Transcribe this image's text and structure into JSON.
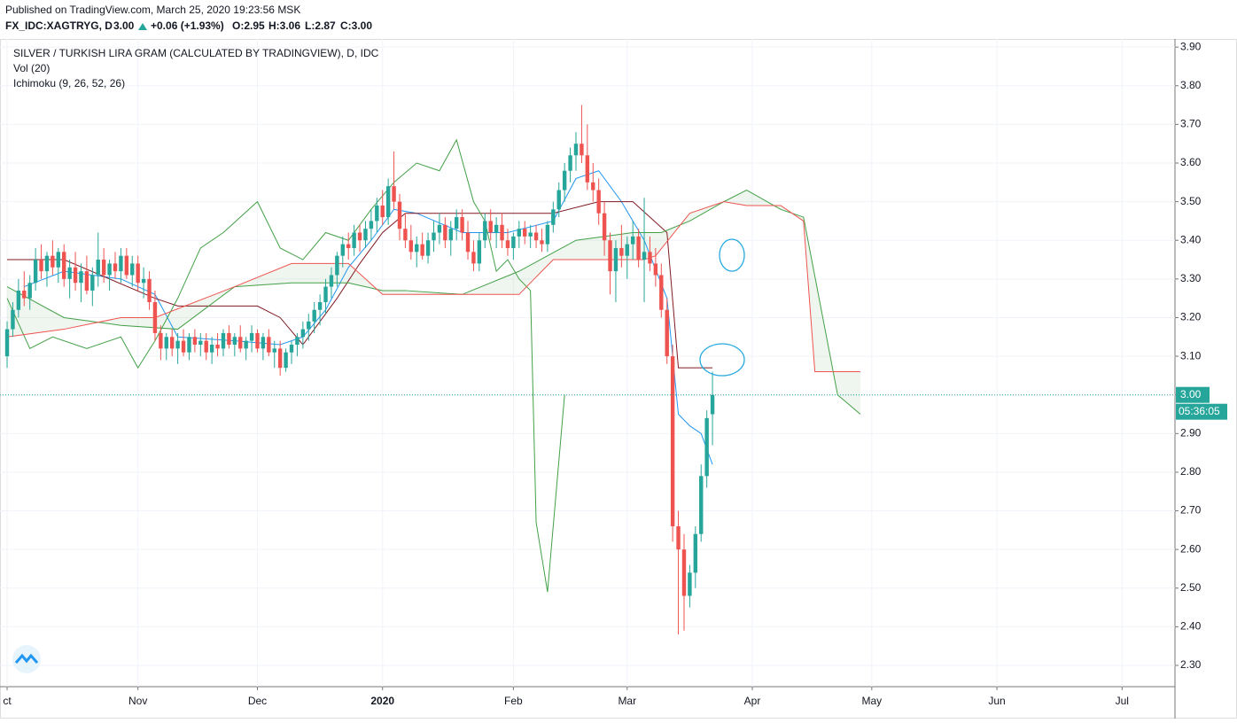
{
  "header": {
    "published": "Published on TradingView.com, March 25, 2020 19:23:56 MSK",
    "symbol": "FX_IDC:XAGTRYG, D",
    "last": "3.00",
    "change": "+0.06 (+1.93%)",
    "open": "O:2.95",
    "high": "H:3.06",
    "low": "L:2.87",
    "close": "C:3.00"
  },
  "chart_data": {
    "type": "candlestick",
    "title": "SILVER / TURKISH LIRA GRAM (CALCULATED BY TRADINGVIEW), D, IDC",
    "indicators": [
      "Vol (20)",
      "Ichimoku (9, 26, 52, 26)"
    ],
    "up_color": "#26a69a",
    "down_color": "#ef5350",
    "xlim": [
      -1.25,
      205.3
    ],
    "ylim": [
      2.245,
      3.921
    ],
    "xticks": [
      {
        "value": 0,
        "label": "ct"
      },
      {
        "value": 23,
        "label": "Nov"
      },
      {
        "value": 44,
        "label": "Dec"
      },
      {
        "value": 66,
        "label": "2020"
      },
      {
        "value": 89,
        "label": "Feb"
      },
      {
        "value": 109,
        "label": "Mar"
      },
      {
        "value": 131,
        "label": "Apr"
      },
      {
        "value": 152,
        "label": "May"
      },
      {
        "value": 174,
        "label": "Jun"
      },
      {
        "value": 196,
        "label": "Jul"
      }
    ],
    "yticks": [
      {
        "value": 2.3,
        "label": "2.30"
      },
      {
        "value": 2.4,
        "label": "2.40"
      },
      {
        "value": 2.5,
        "label": "2.50"
      },
      {
        "value": 2.6,
        "label": "2.60"
      },
      {
        "value": 2.7,
        "label": "2.70"
      },
      {
        "value": 2.8,
        "label": "2.80"
      },
      {
        "value": 2.9,
        "label": "2.90"
      },
      {
        "value": 3.0,
        "label": "3.00"
      },
      {
        "value": 3.1,
        "label": "3.10"
      },
      {
        "value": 3.2,
        "label": "3.20"
      },
      {
        "value": 3.3,
        "label": "3.30"
      },
      {
        "value": 3.4,
        "label": "3.40"
      },
      {
        "value": 3.5,
        "label": "3.50"
      },
      {
        "value": 3.6,
        "label": "3.60"
      },
      {
        "value": 3.7,
        "label": "3.70"
      },
      {
        "value": 3.8,
        "label": "3.80"
      },
      {
        "value": 3.9,
        "label": "3.90"
      }
    ],
    "grid": true,
    "last_price": {
      "value": 3.0,
      "label": "3.00",
      "color": "#26a69a"
    },
    "countdown": "05:36:05",
    "ohlc": [
      [
        3.1,
        3.19,
        3.07,
        3.17
      ],
      [
        3.17,
        3.24,
        3.15,
        3.22
      ],
      [
        3.22,
        3.3,
        3.2,
        3.27
      ],
      [
        3.27,
        3.32,
        3.23,
        3.25
      ],
      [
        3.25,
        3.31,
        3.22,
        3.29
      ],
      [
        3.29,
        3.38,
        3.27,
        3.35
      ],
      [
        3.35,
        3.39,
        3.3,
        3.32
      ],
      [
        3.32,
        3.37,
        3.28,
        3.36
      ],
      [
        3.36,
        3.4,
        3.31,
        3.33
      ],
      [
        3.33,
        3.38,
        3.29,
        3.37
      ],
      [
        3.37,
        3.39,
        3.28,
        3.3
      ],
      [
        3.3,
        3.35,
        3.25,
        3.33
      ],
      [
        3.33,
        3.37,
        3.27,
        3.29
      ],
      [
        3.29,
        3.34,
        3.24,
        3.32
      ],
      [
        3.32,
        3.36,
        3.26,
        3.27
      ],
      [
        3.27,
        3.33,
        3.23,
        3.31
      ],
      [
        3.31,
        3.42,
        3.28,
        3.35
      ],
      [
        3.35,
        3.38,
        3.29,
        3.31
      ],
      [
        3.31,
        3.35,
        3.27,
        3.34
      ],
      [
        3.34,
        3.37,
        3.3,
        3.32
      ],
      [
        3.32,
        3.38,
        3.29,
        3.36
      ],
      [
        3.36,
        3.38,
        3.3,
        3.31
      ],
      [
        3.31,
        3.36,
        3.28,
        3.34
      ],
      [
        3.34,
        3.36,
        3.27,
        3.29
      ],
      [
        3.29,
        3.33,
        3.25,
        3.3
      ],
      [
        3.3,
        3.32,
        3.22,
        3.24
      ],
      [
        3.24,
        3.27,
        3.14,
        3.16
      ],
      [
        3.16,
        3.18,
        3.09,
        3.12
      ],
      [
        3.12,
        3.16,
        3.09,
        3.15
      ],
      [
        3.15,
        3.17,
        3.1,
        3.12
      ],
      [
        3.12,
        3.16,
        3.08,
        3.14
      ],
      [
        3.14,
        3.17,
        3.1,
        3.11
      ],
      [
        3.11,
        3.16,
        3.09,
        3.15
      ],
      [
        3.15,
        3.17,
        3.11,
        3.13
      ],
      [
        3.13,
        3.16,
        3.1,
        3.14
      ],
      [
        3.14,
        3.16,
        3.09,
        3.11
      ],
      [
        3.11,
        3.15,
        3.08,
        3.13
      ],
      [
        3.13,
        3.16,
        3.1,
        3.12
      ],
      [
        3.12,
        3.17,
        3.1,
        3.16
      ],
      [
        3.16,
        3.18,
        3.12,
        3.13
      ],
      [
        3.13,
        3.16,
        3.1,
        3.15
      ],
      [
        3.15,
        3.18,
        3.11,
        3.12
      ],
      [
        3.12,
        3.15,
        3.09,
        3.14
      ],
      [
        3.14,
        3.18,
        3.11,
        3.16
      ],
      [
        3.16,
        3.17,
        3.11,
        3.12
      ],
      [
        3.12,
        3.16,
        3.09,
        3.15
      ],
      [
        3.15,
        3.17,
        3.1,
        3.11
      ],
      [
        3.11,
        3.14,
        3.07,
        3.12
      ],
      [
        3.12,
        3.14,
        3.05,
        3.07
      ],
      [
        3.07,
        3.12,
        3.06,
        3.11
      ],
      [
        3.11,
        3.14,
        3.08,
        3.13
      ],
      [
        3.13,
        3.16,
        3.1,
        3.15
      ],
      [
        3.15,
        3.19,
        3.12,
        3.17
      ],
      [
        3.17,
        3.21,
        3.14,
        3.19
      ],
      [
        3.19,
        3.24,
        3.16,
        3.22
      ],
      [
        3.22,
        3.26,
        3.18,
        3.24
      ],
      [
        3.24,
        3.3,
        3.21,
        3.28
      ],
      [
        3.28,
        3.33,
        3.25,
        3.31
      ],
      [
        3.31,
        3.37,
        3.28,
        3.36
      ],
      [
        3.36,
        3.41,
        3.33,
        3.39
      ],
      [
        3.39,
        3.42,
        3.35,
        3.38
      ],
      [
        3.38,
        3.44,
        3.36,
        3.42
      ],
      [
        3.42,
        3.44,
        3.37,
        3.4
      ],
      [
        3.4,
        3.45,
        3.38,
        3.43
      ],
      [
        3.43,
        3.48,
        3.4,
        3.45
      ],
      [
        3.45,
        3.51,
        3.42,
        3.49
      ],
      [
        3.49,
        3.53,
        3.44,
        3.46
      ],
      [
        3.46,
        3.56,
        3.44,
        3.54
      ],
      [
        3.54,
        3.63,
        3.48,
        3.5
      ],
      [
        3.5,
        3.52,
        3.4,
        3.43
      ],
      [
        3.43,
        3.47,
        3.38,
        3.4
      ],
      [
        3.4,
        3.44,
        3.35,
        3.37
      ],
      [
        3.37,
        3.41,
        3.33,
        3.39
      ],
      [
        3.39,
        3.42,
        3.35,
        3.36
      ],
      [
        3.36,
        3.42,
        3.34,
        3.4
      ],
      [
        3.4,
        3.45,
        3.37,
        3.42
      ],
      [
        3.42,
        3.47,
        3.39,
        3.44
      ],
      [
        3.44,
        3.46,
        3.38,
        3.4
      ],
      [
        3.4,
        3.45,
        3.36,
        3.43
      ],
      [
        3.43,
        3.48,
        3.4,
        3.46
      ],
      [
        3.46,
        3.48,
        3.4,
        3.42
      ],
      [
        3.42,
        3.45,
        3.35,
        3.37
      ],
      [
        3.37,
        3.4,
        3.32,
        3.34
      ],
      [
        3.34,
        3.42,
        3.32,
        3.4
      ],
      [
        3.4,
        3.47,
        3.38,
        3.45
      ],
      [
        3.45,
        3.48,
        3.4,
        3.42
      ],
      [
        3.42,
        3.46,
        3.38,
        3.44
      ],
      [
        3.44,
        3.47,
        3.38,
        3.4
      ],
      [
        3.4,
        3.43,
        3.36,
        3.38
      ],
      [
        3.38,
        3.42,
        3.35,
        3.41
      ],
      [
        3.41,
        3.45,
        3.38,
        3.43
      ],
      [
        3.43,
        3.45,
        3.39,
        3.41
      ],
      [
        3.41,
        3.44,
        3.38,
        3.42
      ],
      [
        3.42,
        3.44,
        3.38,
        3.4
      ],
      [
        3.4,
        3.43,
        3.37,
        3.39
      ],
      [
        3.39,
        3.45,
        3.37,
        3.44
      ],
      [
        3.44,
        3.5,
        3.42,
        3.48
      ],
      [
        3.48,
        3.55,
        3.46,
        3.53
      ],
      [
        3.53,
        3.6,
        3.5,
        3.58
      ],
      [
        3.58,
        3.64,
        3.55,
        3.62
      ],
      [
        3.62,
        3.68,
        3.58,
        3.65
      ],
      [
        3.65,
        3.75,
        3.6,
        3.62
      ],
      [
        3.62,
        3.7,
        3.53,
        3.55
      ],
      [
        3.55,
        3.6,
        3.5,
        3.53
      ],
      [
        3.53,
        3.56,
        3.44,
        3.47
      ],
      [
        3.47,
        3.5,
        3.36,
        3.4
      ],
      [
        3.4,
        3.42,
        3.26,
        3.32
      ],
      [
        3.32,
        3.4,
        3.24,
        3.38
      ],
      [
        3.38,
        3.44,
        3.33,
        3.36
      ],
      [
        3.36,
        3.41,
        3.3,
        3.39
      ],
      [
        3.39,
        3.45,
        3.35,
        3.41
      ],
      [
        3.41,
        3.43,
        3.33,
        3.35
      ],
      [
        3.35,
        3.51,
        3.24,
        3.37
      ],
      [
        3.37,
        3.41,
        3.32,
        3.34
      ],
      [
        3.34,
        3.38,
        3.28,
        3.31
      ],
      [
        3.31,
        3.34,
        3.2,
        3.22
      ],
      [
        3.22,
        3.25,
        3.08,
        3.1
      ],
      [
        3.1,
        3.13,
        2.62,
        2.66
      ],
      [
        2.66,
        2.7,
        2.38,
        2.6
      ],
      [
        2.6,
        2.64,
        2.39,
        2.48
      ],
      [
        2.48,
        2.56,
        2.45,
        2.54
      ],
      [
        2.54,
        2.66,
        2.5,
        2.64
      ],
      [
        2.64,
        2.82,
        2.62,
        2.79
      ],
      [
        2.79,
        2.96,
        2.76,
        2.94
      ],
      [
        2.95,
        3.06,
        2.87,
        3.0
      ]
    ],
    "lines": [
      {
        "color": "#2196f3",
        "x": [
          3,
          10,
          20,
          26,
          30,
          40,
          48,
          52,
          56,
          60,
          64,
          68,
          72,
          80,
          88,
          96,
          100,
          104,
          108,
          112,
          116,
          118,
          120,
          122,
          124
        ],
        "values": [
          3.28,
          3.32,
          3.3,
          3.26,
          3.15,
          3.14,
          3.13,
          3.15,
          3.22,
          3.33,
          3.4,
          3.48,
          3.47,
          3.42,
          3.42,
          3.45,
          3.56,
          3.58,
          3.5,
          3.4,
          3.25,
          2.95,
          2.92,
          2.9,
          2.82
        ]
      },
      {
        "color": "#801922",
        "x": [
          0,
          10,
          26,
          30,
          44,
          48,
          52,
          58,
          62,
          66,
          70,
          84,
          96,
          104,
          110,
          116,
          118,
          124
        ],
        "values": [
          3.35,
          3.35,
          3.25,
          3.23,
          3.23,
          3.2,
          3.13,
          3.25,
          3.34,
          3.42,
          3.47,
          3.47,
          3.47,
          3.5,
          3.5,
          3.42,
          3.07,
          3.07
        ]
      },
      {
        "color": "#43a047",
        "x": [
          0,
          4,
          8,
          14,
          20,
          23,
          26,
          30,
          34,
          38,
          44,
          48,
          52,
          56,
          60,
          64,
          68,
          72,
          76,
          79,
          82,
          84,
          86,
          88,
          90,
          92,
          93,
          95,
          98
        ],
        "values": [
          3.25,
          3.12,
          3.15,
          3.12,
          3.15,
          3.07,
          3.14,
          3.25,
          3.38,
          3.42,
          3.5,
          3.38,
          3.35,
          3.42,
          3.4,
          3.48,
          3.55,
          3.6,
          3.58,
          3.66,
          3.5,
          3.45,
          3.32,
          3.35,
          3.3,
          3.27,
          2.67,
          2.49,
          3.0
        ]
      },
      {
        "color": "#43a047",
        "x": [
          0,
          10,
          20,
          30,
          40,
          50,
          60,
          66,
          70,
          80,
          90,
          100,
          110,
          115,
          120,
          126,
          130,
          136,
          140,
          146,
          150
        ],
        "values": [
          3.28,
          3.2,
          3.18,
          3.17,
          3.28,
          3.29,
          3.29,
          3.27,
          3.27,
          3.26,
          3.32,
          3.4,
          3.42,
          3.42,
          3.45,
          3.5,
          3.53,
          3.48,
          3.46,
          3.0,
          2.95
        ]
      },
      {
        "color": "#ef5350",
        "x": [
          0,
          10,
          20,
          26,
          40,
          50,
          60,
          66,
          80,
          90,
          96,
          112,
          114,
          120,
          126,
          130,
          136,
          140,
          142,
          146,
          150
        ],
        "values": [
          3.15,
          3.17,
          3.2,
          3.2,
          3.28,
          3.34,
          3.34,
          3.26,
          3.26,
          3.26,
          3.35,
          3.35,
          3.36,
          3.47,
          3.5,
          3.49,
          3.49,
          3.45,
          3.06,
          3.06,
          3.06
        ]
      }
    ]
  }
}
